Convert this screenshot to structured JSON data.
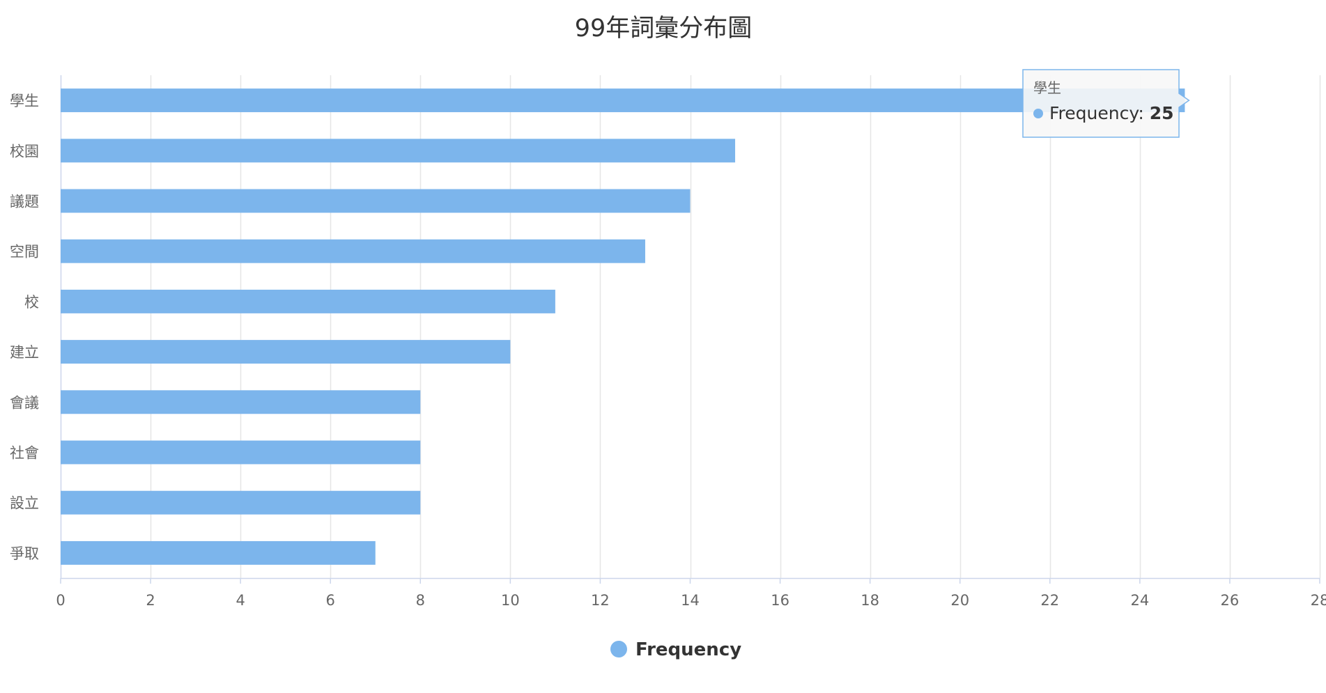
{
  "chart_data": {
    "type": "bar",
    "orientation": "horizontal",
    "title": "99年詞彙分布圖",
    "categories": [
      "學生",
      "校園",
      "議題",
      "空間",
      "校",
      "建立",
      "會議",
      "社會",
      "設立",
      "爭取"
    ],
    "series": [
      {
        "name": "Frequency",
        "values": [
          25,
          15,
          14,
          13,
          11,
          10,
          8,
          8,
          8,
          7
        ],
        "color": "#7cb5ec"
      }
    ],
    "xlim": [
      0,
      28
    ],
    "x_ticks": [
      0,
      2,
      4,
      6,
      8,
      10,
      12,
      14,
      16,
      18,
      20,
      22,
      24,
      26,
      28
    ],
    "grid": true,
    "legend_position": "bottom-center",
    "tooltip": {
      "category": "學生",
      "series_name": "Frequency",
      "separator": ": ",
      "value": 25
    }
  },
  "colors": {
    "grid": "#e6e6e6",
    "axis_line": "#ccd6eb",
    "label": "#666666",
    "title": "#333333",
    "tooltip_bg": "#f7f7f7",
    "tooltip_border": "#7cb5ec"
  }
}
